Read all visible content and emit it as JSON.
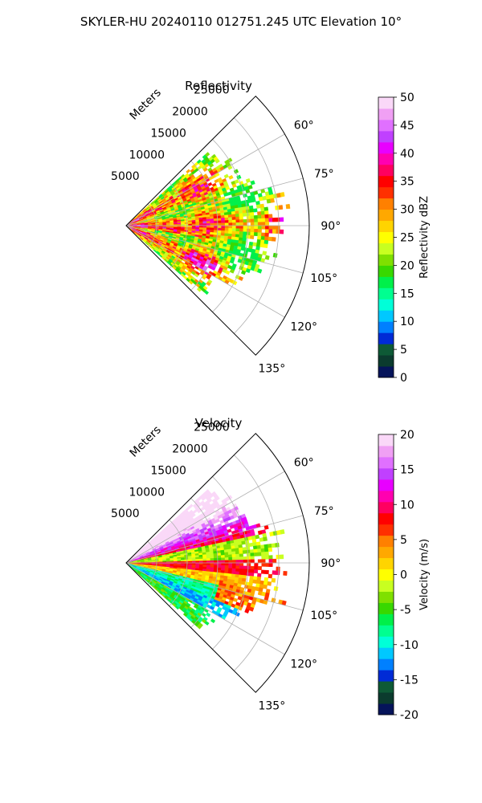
{
  "figure_title": "SKYLER-HU  20240110  012751.245 UTC Elevation 10°",
  "chart_data": [
    {
      "type": "heatmap",
      "projection": "polar-sector",
      "title": "Reflectivity",
      "radial_axis_label": "Meters",
      "radial_ticks": [
        "5000",
        "10000",
        "15000",
        "20000",
        "25000"
      ],
      "radial_tick_values": [
        5000,
        10000,
        15000,
        20000,
        25000
      ],
      "radial_range": [
        0,
        30000
      ],
      "azimuth_range_deg": [
        45,
        135
      ],
      "azimuth_ticks": [
        "60°",
        "75°",
        "90°",
        "105°",
        "120°",
        "135°"
      ],
      "azimuth_tick_values": [
        60,
        75,
        90,
        105,
        120,
        135
      ],
      "grid": true,
      "colorbar": {
        "label": "Reflectivity dBZ",
        "range": [
          0,
          50
        ],
        "ticks": [
          "0",
          "5",
          "10",
          "15",
          "20",
          "25",
          "30",
          "35",
          "40",
          "45",
          "50"
        ],
        "colors": [
          "#05145a",
          "#0b3b2e",
          "#0e5a36",
          "#002bd6",
          "#0080ff",
          "#00c8ff",
          "#00ffd8",
          "#00ff90",
          "#00f04a",
          "#38d800",
          "#7fe000",
          "#c8ff20",
          "#ffff00",
          "#ffd400",
          "#ffa800",
          "#ff8000",
          "#ff3000",
          "#ff0000",
          "#ff0060",
          "#ff00b0",
          "#e800ff",
          "#c040ff",
          "#e070ff",
          "#f0a0f4",
          "#fad8f8"
        ]
      }
    },
    {
      "type": "heatmap",
      "projection": "polar-sector",
      "title": "Velocity",
      "radial_axis_label": "Meters",
      "radial_ticks": [
        "5000",
        "10000",
        "15000",
        "20000",
        "25000"
      ],
      "radial_tick_values": [
        5000,
        10000,
        15000,
        20000,
        25000
      ],
      "radial_range": [
        0,
        30000
      ],
      "azimuth_range_deg": [
        45,
        135
      ],
      "azimuth_ticks": [
        "60°",
        "75°",
        "90°",
        "105°",
        "120°",
        "135°"
      ],
      "azimuth_tick_values": [
        60,
        75,
        90,
        105,
        120,
        135
      ],
      "grid": true,
      "colorbar": {
        "label": "Velocity (m/s)",
        "range": [
          -20,
          20
        ],
        "ticks": [
          "-20",
          "-15",
          "-10",
          "-5",
          "0",
          "5",
          "10",
          "15",
          "20"
        ],
        "colors": [
          "#05145a",
          "#0b3b2e",
          "#0e5a36",
          "#002bd6",
          "#0080ff",
          "#00c8ff",
          "#00ffd8",
          "#00ff90",
          "#00f04a",
          "#38d800",
          "#7fe000",
          "#c8ff20",
          "#ffff00",
          "#ffd400",
          "#ffa800",
          "#ff8000",
          "#ff3000",
          "#ff0000",
          "#ff0060",
          "#ff00b0",
          "#e800ff",
          "#c040ff",
          "#e070ff",
          "#f0a0f4",
          "#fad8f8"
        ]
      }
    }
  ]
}
